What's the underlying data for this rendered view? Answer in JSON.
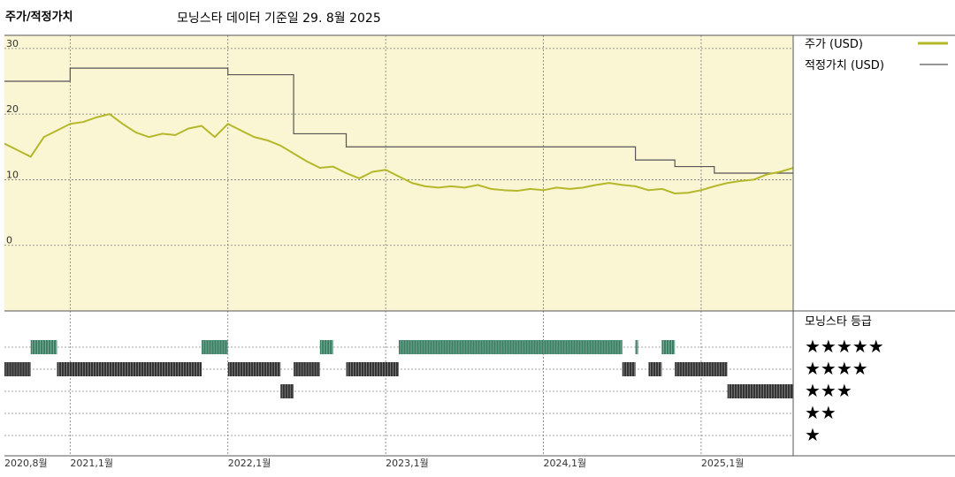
{
  "header": {
    "title": "주가/적정가치",
    "subtitle": "모닝스타 데이터 기준일 29. 8월 2025"
  },
  "legend": {
    "price_label": "주가 (USD)",
    "fair_label": "적정가치 (USD)",
    "rating_title": "모닝스타 등급"
  },
  "colors": {
    "price_line": "#b5b82a",
    "fair_line": "#555555",
    "plot_bg": "#faf5d2",
    "rating_high": "#3a7f63",
    "rating_mid": "#333333"
  },
  "chart_data": {
    "type": "line",
    "title": "",
    "xlabel": "",
    "ylabel": "",
    "ylim": [
      -10,
      32
    ],
    "y_ticks": [
      0,
      10,
      20,
      30
    ],
    "x_tick_labels": [
      "2020,8월",
      "2021,1월",
      "2022,1월",
      "2023,1월",
      "2024,1월",
      "2025,1월"
    ],
    "x_tick_dates": [
      "2020-08",
      "2021-01",
      "2022-01",
      "2023-01",
      "2024-01",
      "2025-01"
    ],
    "x_range": [
      "2020-08",
      "2025-08"
    ],
    "series": [
      {
        "name": "주가 (USD)",
        "x": [
          "2020-08",
          "2020-09",
          "2020-10",
          "2020-11",
          "2020-12",
          "2021-01",
          "2021-02",
          "2021-03",
          "2021-04",
          "2021-05",
          "2021-06",
          "2021-07",
          "2021-08",
          "2021-09",
          "2021-10",
          "2021-11",
          "2021-12",
          "2022-01",
          "2022-02",
          "2022-03",
          "2022-04",
          "2022-05",
          "2022-06",
          "2022-07",
          "2022-08",
          "2022-09",
          "2022-10",
          "2022-11",
          "2022-12",
          "2023-01",
          "2023-02",
          "2023-03",
          "2023-04",
          "2023-05",
          "2023-06",
          "2023-07",
          "2023-08",
          "2023-09",
          "2023-10",
          "2023-11",
          "2023-12",
          "2024-01",
          "2024-02",
          "2024-03",
          "2024-04",
          "2024-05",
          "2024-06",
          "2024-07",
          "2024-08",
          "2024-09",
          "2024-10",
          "2024-11",
          "2024-12",
          "2025-01",
          "2025-02",
          "2025-03",
          "2025-04",
          "2025-05",
          "2025-06",
          "2025-07",
          "2025-08"
        ],
        "values": [
          15.5,
          14.5,
          13.5,
          16.5,
          17.5,
          18.5,
          18.8,
          19.5,
          20.0,
          18.5,
          17.2,
          16.5,
          17.0,
          16.8,
          17.8,
          18.2,
          16.5,
          18.5,
          17.5,
          16.5,
          16.0,
          15.2,
          14.0,
          12.8,
          11.8,
          12.0,
          11.0,
          10.2,
          11.2,
          11.5,
          10.5,
          9.5,
          9.0,
          8.8,
          9.0,
          8.8,
          9.2,
          8.6,
          8.4,
          8.3,
          8.6,
          8.4,
          8.8,
          8.6,
          8.8,
          9.2,
          9.5,
          9.2,
          9.0,
          8.4,
          8.6,
          7.9,
          8.0,
          8.4,
          9.0,
          9.5,
          9.8,
          10.0,
          10.8,
          11.2,
          11.8
        ]
      },
      {
        "name": "적정가치 (USD)",
        "x": [
          "2020-08",
          "2020-12",
          "2021-01",
          "2021-12",
          "2022-01",
          "2022-05",
          "2022-06",
          "2022-09",
          "2022-10",
          "2024-02",
          "2024-03",
          "2024-07",
          "2024-08",
          "2024-10",
          "2024-11",
          "2025-01",
          "2025-02",
          "2025-08"
        ],
        "values": [
          25.0,
          25.0,
          27.0,
          27.0,
          26.0,
          26.0,
          17.0,
          17.0,
          15.0,
          15.0,
          15.0,
          15.0,
          13.0,
          13.0,
          12.0,
          12.0,
          11.0,
          11.0
        ]
      }
    ],
    "rating_rows": [
      "★★★★★",
      "★★★★",
      "★★★",
      "★★",
      "★"
    ],
    "rating_periods": [
      {
        "stars": 4,
        "start": "2020-08",
        "end": "2020-10"
      },
      {
        "stars": 5,
        "start": "2020-10",
        "end": "2020-12"
      },
      {
        "stars": 4,
        "start": "2020-12",
        "end": "2021-11"
      },
      {
        "stars": 5,
        "start": "2021-11",
        "end": "2022-01"
      },
      {
        "stars": 4,
        "start": "2022-01",
        "end": "2022-05"
      },
      {
        "stars": 3,
        "start": "2022-05",
        "end": "2022-06"
      },
      {
        "stars": 4,
        "start": "2022-06",
        "end": "2022-08"
      },
      {
        "stars": 5,
        "start": "2022-08",
        "end": "2022-09"
      },
      {
        "stars": 4,
        "start": "2022-10",
        "end": "2023-02"
      },
      {
        "stars": 5,
        "start": "2023-02",
        "end": "2024-07"
      },
      {
        "stars": 4,
        "start": "2024-07",
        "end": "2024-08"
      },
      {
        "stars": 5,
        "start": "2024-08",
        "end": "2024-08"
      },
      {
        "stars": 4,
        "start": "2024-09",
        "end": "2024-10"
      },
      {
        "stars": 5,
        "start": "2024-10",
        "end": "2024-11"
      },
      {
        "stars": 4,
        "start": "2024-11",
        "end": "2025-03"
      },
      {
        "stars": 3,
        "start": "2025-03",
        "end": "2025-08"
      }
    ]
  }
}
